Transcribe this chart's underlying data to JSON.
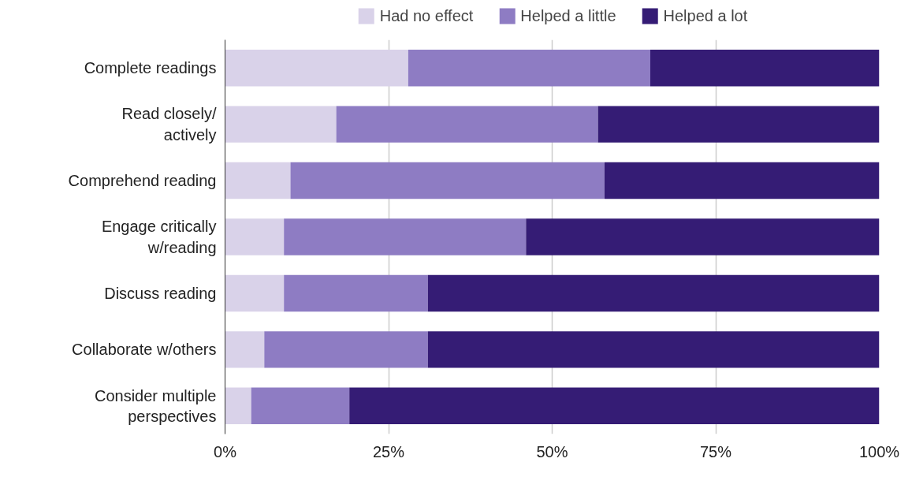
{
  "chart_data": {
    "type": "bar",
    "orientation": "horizontal",
    "stacked": true,
    "categories": [
      "Complete readings",
      "Read closely/\nactively",
      "Comprehend reading",
      "Engage critically\nw/reading",
      "Discuss reading",
      "Collaborate w/others",
      "Consider multiple\nperspectives"
    ],
    "series": [
      {
        "name": "Had no effect",
        "color": "#d9d2e9",
        "values": [
          28,
          17,
          10,
          9,
          9,
          6,
          4
        ]
      },
      {
        "name": "Helped a little",
        "color": "#8e7cc3",
        "values": [
          37,
          40,
          48,
          37,
          22,
          25,
          15
        ]
      },
      {
        "name": "Helped a lot",
        "color": "#351c75",
        "values": [
          35,
          43,
          42,
          54,
          69,
          69,
          81
        ]
      }
    ],
    "xlim": [
      0,
      100
    ],
    "xticks": [
      {
        "value": 0,
        "label": "0%"
      },
      {
        "value": 25,
        "label": "25%"
      },
      {
        "value": 50,
        "label": "50%"
      },
      {
        "value": 75,
        "label": "75%"
      },
      {
        "value": 100,
        "label": "100%"
      }
    ],
    "grid": "x",
    "legend": "top"
  }
}
